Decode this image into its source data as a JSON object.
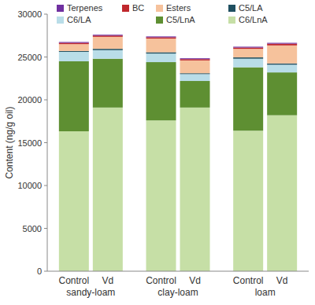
{
  "chart_data": {
    "type": "bar",
    "stacked": true,
    "y_label": "Content (ng/g oil)",
    "categories": [
      "Control",
      "Vd",
      "Control",
      "Vd",
      "Control",
      "Vd"
    ],
    "groups": [
      "sandy-loam",
      "clay-loam",
      "loam"
    ],
    "ylim": [
      0,
      30000
    ],
    "yticks": [
      0,
      5000,
      10000,
      15000,
      20000,
      25000,
      30000
    ],
    "legend": "top",
    "series": [
      {
        "name": "C6/LnA",
        "color": "#c6dfa6",
        "values": [
          16330,
          19100,
          17600,
          19100,
          16400,
          18200
        ]
      },
      {
        "name": "C5/LnA",
        "color": "#5e8f32",
        "values": [
          8170,
          5700,
          6800,
          3100,
          7400,
          5000
        ]
      },
      {
        "name": "C6/LA",
        "color": "#b9dde8",
        "values": [
          1100,
          1000,
          1000,
          800,
          1000,
          900
        ]
      },
      {
        "name": "C5/LA",
        "color": "#1f4f60",
        "values": [
          100,
          150,
          150,
          100,
          150,
          150
        ]
      },
      {
        "name": "Esters",
        "color": "#f6c29c",
        "values": [
          800,
          1400,
          1600,
          1500,
          1000,
          2100
        ]
      },
      {
        "name": "BC",
        "color": "#c0282d",
        "values": [
          150,
          150,
          150,
          150,
          150,
          200
        ]
      },
      {
        "name": "Terpenes",
        "color": "#7030a0",
        "values": [
          100,
          100,
          100,
          100,
          100,
          100
        ]
      }
    ]
  }
}
